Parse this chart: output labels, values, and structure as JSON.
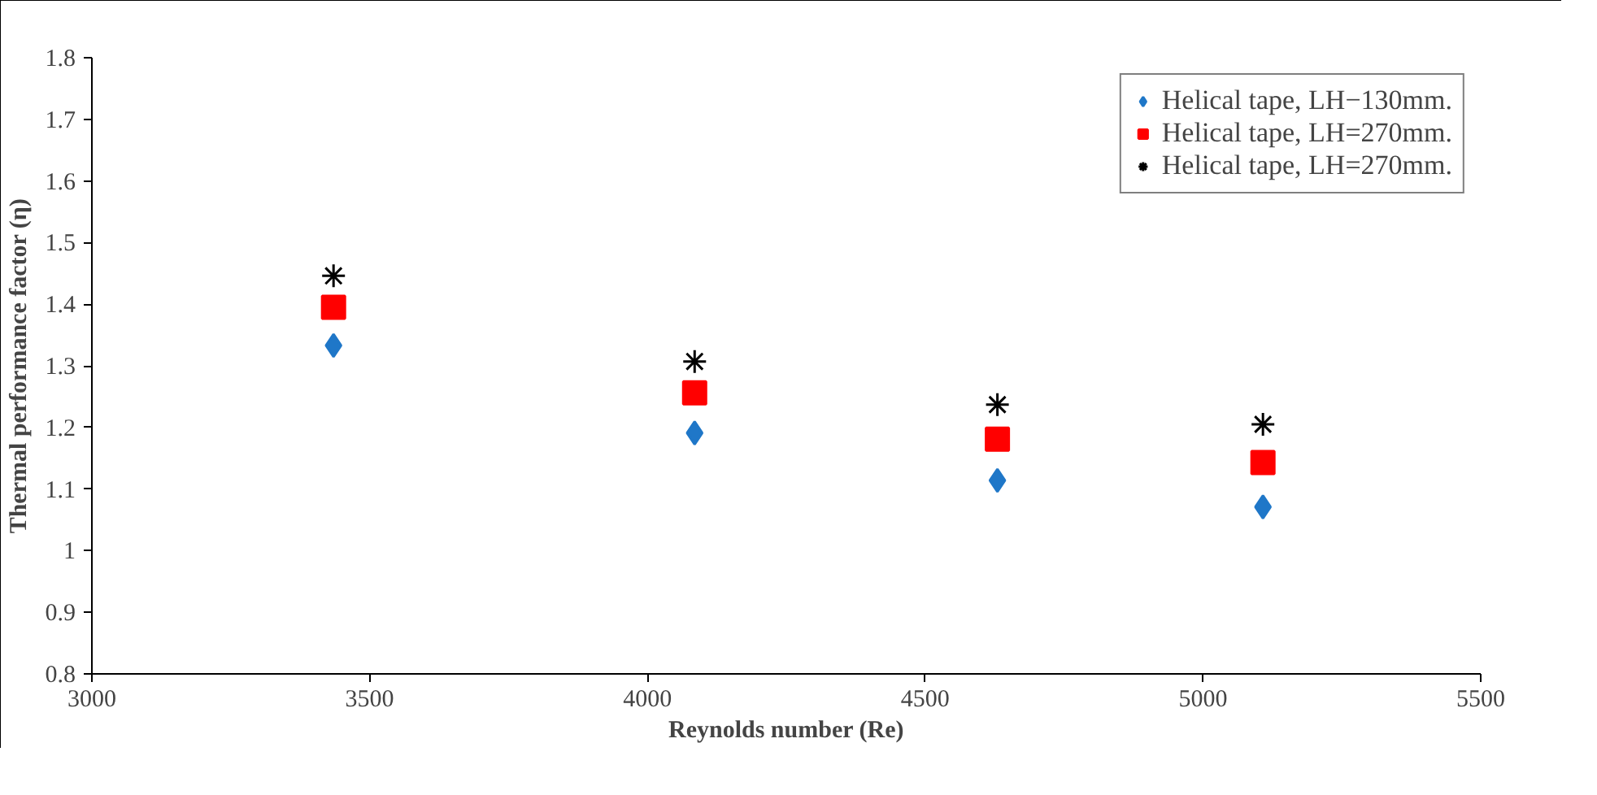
{
  "chart_data": {
    "type": "scatter",
    "xlabel": "Reynolds number (Re)",
    "ylabel": "Thermal performance factor (η)",
    "x": [
      3435,
      4085,
      4630,
      5108
    ],
    "series": [
      {
        "name": "Helical tape, LH−130mm.",
        "color": "#1f77c8",
        "marker": "diamond",
        "values": [
          1.333,
          1.191,
          1.114,
          1.071
        ]
      },
      {
        "name": "Helical tape, LH=270mm.",
        "color": "#ff0000",
        "marker": "square",
        "values": [
          1.395,
          1.256,
          1.181,
          1.143
        ]
      },
      {
        "name": "Helical tape, LH=270mm.",
        "color": "#000000",
        "marker": "cross",
        "values": [
          1.446,
          1.307,
          1.237,
          1.205
        ]
      }
    ],
    "xlim": [
      3000,
      5500
    ],
    "xticks": [
      3000,
      3500,
      4000,
      4500,
      5000,
      5500
    ],
    "ylim": [
      0.8,
      1.8
    ],
    "yticks": [
      {
        "value": 0.8,
        "label": "0.8"
      },
      {
        "value": 0.9,
        "label": "0.9"
      },
      {
        "value": 1.0,
        "label": "1"
      },
      {
        "value": 1.1,
        "label": "1.1"
      },
      {
        "value": 1.2,
        "label": "1.2"
      },
      {
        "value": 1.3,
        "label": "1.3"
      },
      {
        "value": 1.4,
        "label": "1.4"
      },
      {
        "value": 1.5,
        "label": "1.5"
      },
      {
        "value": 1.6,
        "label": "1.6"
      },
      {
        "value": 1.7,
        "label": "1.7"
      },
      {
        "value": 1.8,
        "label": "1.8"
      }
    ],
    "grid": false,
    "legend": "top right"
  }
}
